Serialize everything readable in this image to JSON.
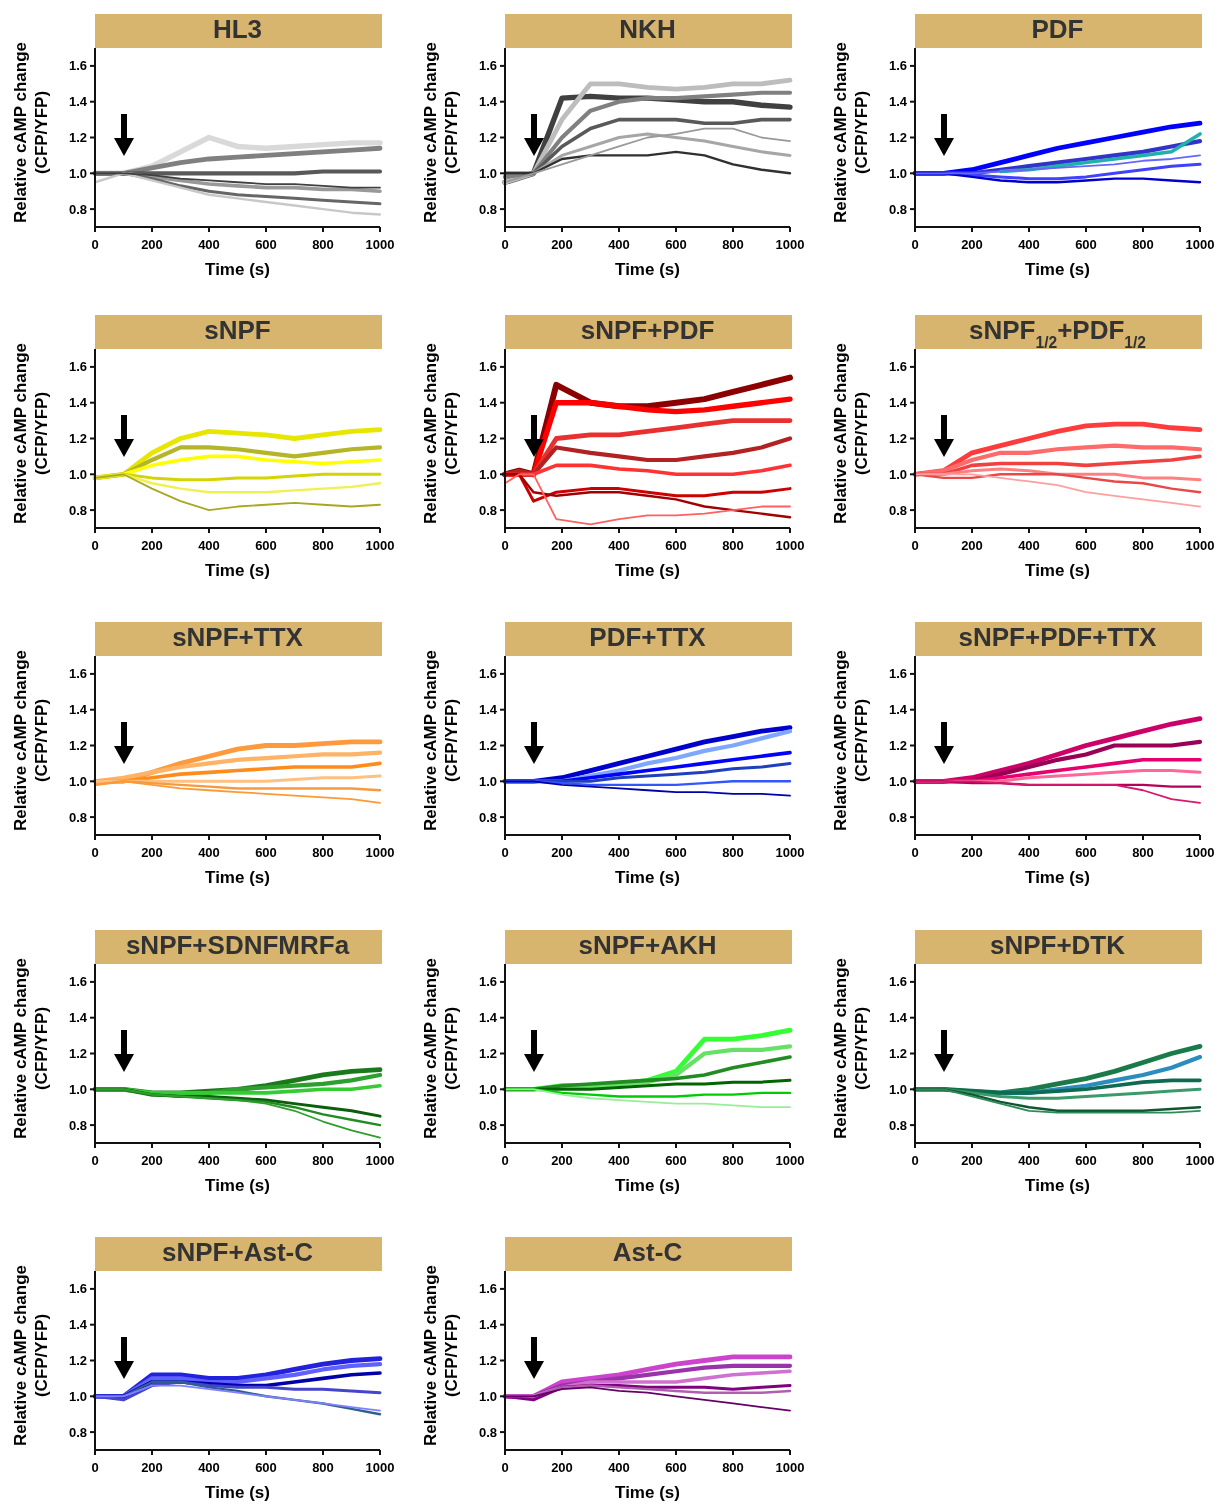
{
  "chart_data": [
    {
      "type": "line",
      "title": "HL3",
      "xlabel": "Time (s)",
      "ylabel": "Relative cAMP change\n(CFP/YFP)",
      "xlim": [
        0,
        1000
      ],
      "ylim": [
        0.7,
        1.7
      ],
      "xticks": [
        0,
        200,
        400,
        600,
        800,
        1000
      ],
      "yticks": [
        {
          "value": 0.8,
          "label": "0.8"
        },
        {
          "value": 1.0,
          "label": "1.0"
        },
        {
          "value": 1.2,
          "label": "1.2"
        },
        {
          "value": 1.4,
          "label": "1.4"
        },
        {
          "value": 1.6,
          "label": "1.6"
        }
      ],
      "x": [
        0,
        100,
        200,
        300,
        400,
        500,
        600,
        700,
        800,
        900,
        1000
      ],
      "series": [
        {
          "color": "#d9d9d9",
          "values": [
            1.0,
            1.0,
            1.04,
            1.12,
            1.2,
            1.15,
            1.14,
            1.15,
            1.16,
            1.17,
            1.17
          ]
        },
        {
          "color": "#808080",
          "values": [
            1.0,
            1.0,
            1.03,
            1.06,
            1.08,
            1.09,
            1.1,
            1.11,
            1.12,
            1.13,
            1.14
          ]
        },
        {
          "color": "#595959",
          "values": [
            1.0,
            1.0,
            1.0,
            1.0,
            1.0,
            1.0,
            1.0,
            1.0,
            1.01,
            1.01,
            1.01
          ]
        },
        {
          "color": "#999999",
          "values": [
            1.0,
            1.0,
            0.98,
            0.96,
            0.94,
            0.93,
            0.92,
            0.92,
            0.91,
            0.91,
            0.9
          ]
        },
        {
          "color": "#666666",
          "values": [
            1.0,
            1.0,
            0.97,
            0.93,
            0.9,
            0.88,
            0.87,
            0.86,
            0.85,
            0.84,
            0.83
          ]
        },
        {
          "color": "#c8c8c8",
          "values": [
            0.95,
            1.0,
            0.96,
            0.92,
            0.88,
            0.86,
            0.84,
            0.82,
            0.8,
            0.78,
            0.77
          ]
        },
        {
          "color": "#404040",
          "values": [
            1.0,
            1.0,
            0.99,
            0.97,
            0.96,
            0.95,
            0.94,
            0.94,
            0.93,
            0.92,
            0.92
          ]
        }
      ]
    },
    {
      "type": "line",
      "title": "NKH",
      "xlabel": "Time (s)",
      "ylabel": "Relative cAMP change\n(CFP/YFP)",
      "xlim": [
        0,
        1000
      ],
      "ylim": [
        0.7,
        1.7
      ],
      "xticks": [
        0,
        200,
        400,
        600,
        800,
        1000
      ],
      "yticks": [
        {
          "value": 0.8,
          "label": "0.8"
        },
        {
          "value": 1.0,
          "label": "1.0"
        },
        {
          "value": 1.2,
          "label": "1.2"
        },
        {
          "value": 1.4,
          "label": "1.4"
        },
        {
          "value": 1.6,
          "label": "1.6"
        }
      ],
      "x": [
        0,
        100,
        200,
        300,
        400,
        500,
        600,
        700,
        800,
        900,
        1000
      ],
      "series": [
        {
          "color": "#404040",
          "values": [
            0.95,
            1.0,
            1.42,
            1.43,
            1.42,
            1.42,
            1.41,
            1.4,
            1.4,
            1.38,
            1.37
          ]
        },
        {
          "color": "#bdbdbd",
          "values": [
            0.95,
            1.0,
            1.3,
            1.5,
            1.5,
            1.48,
            1.47,
            1.48,
            1.5,
            1.5,
            1.52
          ]
        },
        {
          "color": "#808080",
          "values": [
            0.98,
            1.0,
            1.2,
            1.35,
            1.4,
            1.42,
            1.42,
            1.43,
            1.44,
            1.45,
            1.45
          ]
        },
        {
          "color": "#595959",
          "values": [
            1.0,
            1.0,
            1.15,
            1.25,
            1.3,
            1.3,
            1.3,
            1.28,
            1.28,
            1.3,
            1.3
          ]
        },
        {
          "color": "#a6a6a6",
          "values": [
            1.0,
            1.0,
            1.1,
            1.15,
            1.2,
            1.22,
            1.2,
            1.18,
            1.15,
            1.12,
            1.1
          ]
        },
        {
          "color": "#303030",
          "values": [
            1.0,
            1.0,
            1.08,
            1.1,
            1.1,
            1.1,
            1.12,
            1.1,
            1.05,
            1.02,
            1.0
          ]
        },
        {
          "color": "#999999",
          "values": [
            0.95,
            1.0,
            1.05,
            1.1,
            1.15,
            1.2,
            1.22,
            1.25,
            1.25,
            1.2,
            1.18
          ]
        }
      ]
    },
    {
      "type": "line",
      "title": "PDF",
      "xlabel": "Time (s)",
      "ylabel": "Relative cAMP change\n(CFP/YFP)",
      "xlim": [
        0,
        1000
      ],
      "ylim": [
        0.7,
        1.7
      ],
      "xticks": [
        0,
        200,
        400,
        600,
        800,
        1000
      ],
      "yticks": [
        {
          "value": 0.8,
          "label": "0.8"
        },
        {
          "value": 1.0,
          "label": "1.0"
        },
        {
          "value": 1.2,
          "label": "1.2"
        },
        {
          "value": 1.4,
          "label": "1.4"
        },
        {
          "value": 1.6,
          "label": "1.6"
        }
      ],
      "x": [
        0,
        100,
        200,
        300,
        400,
        500,
        600,
        700,
        800,
        900,
        1000
      ],
      "series": [
        {
          "color": "#0000ff",
          "values": [
            1.0,
            1.0,
            1.02,
            1.06,
            1.1,
            1.14,
            1.17,
            1.2,
            1.23,
            1.26,
            1.28
          ]
        },
        {
          "color": "#3333cc",
          "values": [
            1.0,
            1.0,
            1.0,
            1.02,
            1.04,
            1.06,
            1.08,
            1.1,
            1.12,
            1.15,
            1.18
          ]
        },
        {
          "color": "#20b2aa",
          "values": [
            null,
            null,
            null,
            1.01,
            1.02,
            1.04,
            1.06,
            1.08,
            1.1,
            1.12,
            1.22
          ]
        },
        {
          "color": "#4040ff",
          "values": [
            1.0,
            1.0,
            0.99,
            0.98,
            0.97,
            0.97,
            0.98,
            1.0,
            1.02,
            1.04,
            1.05
          ]
        },
        {
          "color": "#0000cc",
          "values": [
            1.0,
            1.0,
            0.98,
            0.96,
            0.95,
            0.95,
            0.96,
            0.97,
            0.97,
            0.96,
            0.95
          ]
        },
        {
          "color": "#6666ff",
          "values": [
            1.0,
            1.0,
            1.0,
            1.01,
            1.02,
            1.03,
            1.04,
            1.05,
            1.07,
            1.08,
            1.1
          ]
        }
      ]
    },
    {
      "type": "line",
      "title": "sNPF",
      "xlabel": "Time (s)",
      "ylabel": "Relative cAMP change\n(CFP/YFP)",
      "xlim": [
        0,
        1000
      ],
      "ylim": [
        0.7,
        1.7
      ],
      "xticks": [
        0,
        200,
        400,
        600,
        800,
        1000
      ],
      "yticks": [
        {
          "value": 0.8,
          "label": "0.8"
        },
        {
          "value": 1.0,
          "label": "1.0"
        },
        {
          "value": 1.2,
          "label": "1.2"
        },
        {
          "value": 1.4,
          "label": "1.4"
        },
        {
          "value": 1.6,
          "label": "1.6"
        }
      ],
      "x": [
        0,
        100,
        200,
        300,
        400,
        500,
        600,
        700,
        800,
        900,
        1000
      ],
      "series": [
        {
          "color": "#e6e600",
          "values": [
            0.98,
            1.0,
            1.12,
            1.2,
            1.24,
            1.23,
            1.22,
            1.2,
            1.22,
            1.24,
            1.25
          ]
        },
        {
          "color": "#b5b52a",
          "values": [
            0.98,
            1.0,
            1.08,
            1.15,
            1.15,
            1.14,
            1.12,
            1.1,
            1.12,
            1.14,
            1.15
          ]
        },
        {
          "color": "#ffff00",
          "values": [
            0.98,
            1.0,
            1.05,
            1.08,
            1.1,
            1.1,
            1.08,
            1.07,
            1.06,
            1.07,
            1.08
          ]
        },
        {
          "color": "#d4d400",
          "values": [
            0.98,
            1.0,
            0.98,
            0.97,
            0.97,
            0.98,
            0.98,
            0.99,
            1.0,
            1.0,
            1.0
          ]
        },
        {
          "color": "#f0f050",
          "values": [
            0.98,
            1.0,
            0.95,
            0.92,
            0.9,
            0.9,
            0.9,
            0.91,
            0.92,
            0.93,
            0.95
          ]
        },
        {
          "color": "#a8a820",
          "values": [
            0.98,
            1.0,
            0.92,
            0.85,
            0.8,
            0.82,
            0.83,
            0.84,
            0.83,
            0.82,
            0.83
          ]
        }
      ]
    },
    {
      "type": "line",
      "title": "sNPF+PDF",
      "xlabel": "Time (s)",
      "ylabel": "Relative cAMP change\n(CFP/YFP)",
      "xlim": [
        0,
        1000
      ],
      "ylim": [
        0.7,
        1.7
      ],
      "xticks": [
        0,
        200,
        400,
        600,
        800,
        1000
      ],
      "yticks": [
        {
          "value": 0.8,
          "label": "0.8"
        },
        {
          "value": 1.0,
          "label": "1.0"
        },
        {
          "value": 1.2,
          "label": "1.2"
        },
        {
          "value": 1.4,
          "label": "1.4"
        },
        {
          "value": 1.6,
          "label": "1.6"
        }
      ],
      "x": [
        0,
        50,
        100,
        180,
        300,
        400,
        500,
        600,
        700,
        800,
        900,
        1000
      ],
      "series": [
        {
          "color": "#8b0000",
          "values": [
            1.0,
            1.02,
            1.0,
            1.5,
            1.4,
            1.38,
            1.38,
            1.4,
            1.42,
            1.46,
            1.5,
            1.54
          ]
        },
        {
          "color": "#ff0000",
          "values": [
            1.0,
            1.0,
            1.0,
            1.4,
            1.4,
            1.38,
            1.36,
            1.35,
            1.36,
            1.38,
            1.4,
            1.42
          ]
        },
        {
          "color": "#e83030",
          "values": [
            1.0,
            1.0,
            1.0,
            1.2,
            1.22,
            1.22,
            1.24,
            1.26,
            1.28,
            1.3,
            1.3,
            1.3
          ]
        },
        {
          "color": "#b22222",
          "values": [
            1.0,
            1.02,
            1.0,
            1.15,
            1.12,
            1.1,
            1.08,
            1.08,
            1.1,
            1.12,
            1.15,
            1.2
          ]
        },
        {
          "color": "#ff3333",
          "values": [
            1.0,
            1.0,
            1.0,
            1.05,
            1.05,
            1.03,
            1.02,
            1.0,
            1.0,
            1.0,
            1.02,
            1.05
          ]
        },
        {
          "color": "#cc0000",
          "values": [
            1.0,
            1.0,
            0.85,
            0.9,
            0.92,
            0.92,
            0.9,
            0.88,
            0.88,
            0.9,
            0.9,
            0.92
          ]
        },
        {
          "color": "#a00000",
          "values": [
            1.0,
            1.0,
            0.9,
            0.88,
            0.9,
            0.9,
            0.88,
            0.86,
            0.82,
            0.8,
            0.78,
            0.76
          ]
        },
        {
          "color": "#ff6060",
          "values": [
            0.95,
            1.0,
            1.0,
            0.75,
            0.72,
            0.75,
            0.77,
            0.77,
            0.78,
            0.8,
            0.82,
            0.82
          ]
        }
      ]
    },
    {
      "type": "line",
      "title": "sNPF$_{1/2}$+PDF$_{1/2}$",
      "xlabel": "Time (s)",
      "ylabel": "Relative cAMP change\n(CFP/YFP)",
      "xlim": [
        0,
        1000
      ],
      "ylim": [
        0.7,
        1.7
      ],
      "xticks": [
        0,
        200,
        400,
        600,
        800,
        1000
      ],
      "yticks": [
        {
          "value": 0.8,
          "label": "0.8"
        },
        {
          "value": 1.0,
          "label": "1.0"
        },
        {
          "value": 1.2,
          "label": "1.2"
        },
        {
          "value": 1.4,
          "label": "1.4"
        },
        {
          "value": 1.6,
          "label": "1.6"
        }
      ],
      "x": [
        0,
        100,
        200,
        300,
        400,
        500,
        600,
        700,
        800,
        900,
        1000
      ],
      "series": [
        {
          "color": "#ff3b3b",
          "values": [
            1.0,
            1.02,
            1.12,
            1.16,
            1.2,
            1.24,
            1.27,
            1.28,
            1.28,
            1.26,
            1.25
          ]
        },
        {
          "color": "#ff6b6b",
          "values": [
            1.0,
            1.02,
            1.08,
            1.12,
            1.12,
            1.14,
            1.15,
            1.16,
            1.15,
            1.15,
            1.14
          ]
        },
        {
          "color": "#f04040",
          "values": [
            1.0,
            1.0,
            1.05,
            1.06,
            1.06,
            1.06,
            1.05,
            1.06,
            1.07,
            1.08,
            1.1
          ]
        },
        {
          "color": "#ff8080",
          "values": [
            1.0,
            1.0,
            1.02,
            1.03,
            1.02,
            1.0,
            1.0,
            1.0,
            0.98,
            0.98,
            0.97
          ]
        },
        {
          "color": "#e84848",
          "values": [
            1.0,
            0.98,
            0.98,
            1.0,
            1.0,
            1.0,
            0.98,
            0.96,
            0.95,
            0.92,
            0.9
          ]
        },
        {
          "color": "#ffa0a0",
          "values": [
            1.0,
            1.0,
            1.0,
            0.98,
            0.96,
            0.94,
            0.9,
            0.88,
            0.86,
            0.84,
            0.82
          ]
        }
      ]
    },
    {
      "type": "line",
      "title": "sNPF+TTX",
      "xlabel": "Time (s)",
      "ylabel": "Relative cAMP change\n(CFP/YFP)",
      "xlim": [
        0,
        1000
      ],
      "ylim": [
        0.7,
        1.7
      ],
      "xticks": [
        0,
        200,
        400,
        600,
        800,
        1000
      ],
      "yticks": [
        {
          "value": 0.8,
          "label": "0.8"
        },
        {
          "value": 1.0,
          "label": "1.0"
        },
        {
          "value": 1.2,
          "label": "1.2"
        },
        {
          "value": 1.4,
          "label": "1.4"
        },
        {
          "value": 1.6,
          "label": "1.6"
        }
      ],
      "x": [
        0,
        100,
        200,
        300,
        400,
        500,
        600,
        700,
        800,
        900,
        1000
      ],
      "series": [
        {
          "color": "#ff9a3c",
          "values": [
            1.0,
            1.0,
            1.05,
            1.1,
            1.14,
            1.18,
            1.2,
            1.2,
            1.21,
            1.22,
            1.22
          ]
        },
        {
          "color": "#ffb366",
          "values": [
            1.0,
            1.02,
            1.05,
            1.08,
            1.1,
            1.12,
            1.13,
            1.14,
            1.15,
            1.15,
            1.16
          ]
        },
        {
          "color": "#ff8c1a",
          "values": [
            1.0,
            1.0,
            1.02,
            1.04,
            1.05,
            1.06,
            1.07,
            1.08,
            1.08,
            1.08,
            1.1
          ]
        },
        {
          "color": "#ffc080",
          "values": [
            1.0,
            1.0,
            1.0,
            1.0,
            1.0,
            1.0,
            1.0,
            1.01,
            1.02,
            1.02,
            1.03
          ]
        },
        {
          "color": "#f59a40",
          "values": [
            0.98,
            1.0,
            0.99,
            0.98,
            0.97,
            0.96,
            0.96,
            0.96,
            0.96,
            0.96,
            0.95
          ]
        },
        {
          "color": "#ff9933",
          "values": [
            0.98,
            1.0,
            0.98,
            0.96,
            0.95,
            0.94,
            0.93,
            0.92,
            0.91,
            0.9,
            0.88
          ]
        }
      ]
    },
    {
      "type": "line",
      "title": "PDF+TTX",
      "xlabel": "Time (s)",
      "ylabel": "Relative cAMP change\n(CFP/YFP)",
      "xlim": [
        0,
        1000
      ],
      "ylim": [
        0.7,
        1.7
      ],
      "xticks": [
        0,
        200,
        400,
        600,
        800,
        1000
      ],
      "yticks": [
        {
          "value": 0.8,
          "label": "0.8"
        },
        {
          "value": 1.0,
          "label": "1.0"
        },
        {
          "value": 1.2,
          "label": "1.2"
        },
        {
          "value": 1.4,
          "label": "1.4"
        },
        {
          "value": 1.6,
          "label": "1.6"
        }
      ],
      "x": [
        0,
        100,
        200,
        300,
        400,
        500,
        600,
        700,
        800,
        900,
        1000
      ],
      "series": [
        {
          "color": "#0000cc",
          "values": [
            1.0,
            1.0,
            1.02,
            1.06,
            1.1,
            1.14,
            1.18,
            1.22,
            1.25,
            1.28,
            1.3
          ]
        },
        {
          "color": "#7fa7ff",
          "values": [
            1.0,
            1.0,
            1.0,
            1.03,
            1.06,
            1.1,
            1.13,
            1.17,
            1.2,
            1.24,
            1.28
          ]
        },
        {
          "color": "#0000ff",
          "values": [
            1.0,
            1.0,
            1.0,
            1.02,
            1.04,
            1.06,
            1.08,
            1.1,
            1.12,
            1.14,
            1.16
          ]
        },
        {
          "color": "#1f3fbf",
          "values": [
            1.0,
            1.0,
            1.0,
            1.0,
            1.02,
            1.03,
            1.04,
            1.05,
            1.07,
            1.08,
            1.1
          ]
        },
        {
          "color": "#3355ff",
          "values": [
            1.0,
            1.0,
            0.99,
            0.98,
            0.98,
            0.98,
            0.98,
            0.99,
            1.0,
            1.0,
            1.0
          ]
        },
        {
          "color": "#0000aa",
          "values": [
            1.0,
            1.0,
            0.98,
            0.97,
            0.96,
            0.95,
            0.94,
            0.94,
            0.93,
            0.93,
            0.92
          ]
        }
      ]
    },
    {
      "type": "line",
      "title": "sNPF+PDF+TTX",
      "xlabel": "Time (s)",
      "ylabel": "Relative cAMP change\n(CFP/YFP)",
      "xlim": [
        0,
        1000
      ],
      "ylim": [
        0.7,
        1.7
      ],
      "xticks": [
        0,
        200,
        400,
        600,
        800,
        1000
      ],
      "yticks": [
        {
          "value": 0.8,
          "label": "0.8"
        },
        {
          "value": 1.0,
          "label": "1.0"
        },
        {
          "value": 1.2,
          "label": "1.2"
        },
        {
          "value": 1.4,
          "label": "1.4"
        },
        {
          "value": 1.6,
          "label": "1.6"
        }
      ],
      "x": [
        0,
        100,
        200,
        300,
        400,
        500,
        600,
        700,
        800,
        900,
        1000
      ],
      "series": [
        {
          "color": "#cc0066",
          "values": [
            1.0,
            1.0,
            1.02,
            1.06,
            1.1,
            1.15,
            1.2,
            1.24,
            1.28,
            1.32,
            1.35
          ]
        },
        {
          "color": "#990055",
          "values": [
            1.0,
            1.0,
            1.0,
            1.04,
            1.08,
            1.12,
            1.15,
            1.2,
            1.2,
            1.2,
            1.22
          ]
        },
        {
          "color": "#e6006e",
          "values": [
            1.0,
            1.0,
            1.0,
            1.02,
            1.04,
            1.06,
            1.08,
            1.1,
            1.12,
            1.12,
            1.12
          ]
        },
        {
          "color": "#ff6699",
          "values": [
            1.0,
            1.0,
            1.0,
            1.0,
            1.02,
            1.03,
            1.04,
            1.05,
            1.06,
            1.06,
            1.05
          ]
        },
        {
          "color": "#b3005a",
          "values": [
            1.0,
            1.0,
            0.99,
            0.99,
            0.98,
            0.98,
            0.98,
            0.98,
            0.98,
            0.97,
            0.97
          ]
        },
        {
          "color": "#d6186e",
          "values": [
            1.0,
            1.0,
            1.0,
            0.99,
            0.98,
            0.98,
            0.98,
            0.98,
            0.95,
            0.9,
            0.88
          ]
        }
      ]
    },
    {
      "type": "line",
      "title": "sNPF+SDNFMRFa",
      "xlabel": "Time (s)",
      "ylabel": "Relative cAMP change\n(CFP/YFP)",
      "xlim": [
        0,
        1000
      ],
      "ylim": [
        0.7,
        1.7
      ],
      "xticks": [
        0,
        200,
        400,
        600,
        800,
        1000
      ],
      "yticks": [
        {
          "value": 0.8,
          "label": "0.8"
        },
        {
          "value": 1.0,
          "label": "1.0"
        },
        {
          "value": 1.2,
          "label": "1.2"
        },
        {
          "value": 1.4,
          "label": "1.4"
        },
        {
          "value": 1.6,
          "label": "1.6"
        }
      ],
      "x": [
        0,
        100,
        200,
        300,
        400,
        500,
        600,
        700,
        800,
        900,
        1000
      ],
      "series": [
        {
          "color": "#1a7a1a",
          "values": [
            1.0,
            1.0,
            0.98,
            0.98,
            0.99,
            1.0,
            1.02,
            1.05,
            1.08,
            1.1,
            1.11
          ]
        },
        {
          "color": "#2ca02c",
          "values": [
            1.0,
            1.0,
            0.97,
            0.97,
            0.98,
            1.0,
            1.01,
            1.02,
            1.03,
            1.05,
            1.08
          ]
        },
        {
          "color": "#33cc33",
          "values": [
            1.0,
            1.0,
            0.98,
            0.98,
            0.98,
            0.98,
            0.98,
            0.99,
            1.0,
            1.0,
            1.02
          ]
        },
        {
          "color": "#0b5e0b",
          "values": [
            1.0,
            1.0,
            0.97,
            0.96,
            0.96,
            0.95,
            0.94,
            0.92,
            0.9,
            0.88,
            0.85
          ]
        },
        {
          "color": "#228b22",
          "values": [
            1.0,
            1.0,
            0.97,
            0.96,
            0.95,
            0.94,
            0.93,
            0.9,
            0.86,
            0.83,
            0.8
          ]
        },
        {
          "color": "#2e9e2e",
          "values": [
            1.0,
            1.0,
            0.97,
            0.96,
            0.95,
            0.94,
            0.92,
            0.88,
            0.82,
            0.77,
            0.73
          ]
        }
      ]
    },
    {
      "type": "line",
      "title": "sNPF+AKH",
      "xlabel": "Time (s)",
      "ylabel": "Relative cAMP change\n(CFP/YFP)",
      "xlim": [
        0,
        1000
      ],
      "ylim": [
        0.7,
        1.7
      ],
      "xticks": [
        0,
        200,
        400,
        600,
        800,
        1000
      ],
      "yticks": [
        {
          "value": 0.8,
          "label": "0.8"
        },
        {
          "value": 1.0,
          "label": "1.0"
        },
        {
          "value": 1.2,
          "label": "1.2"
        },
        {
          "value": 1.4,
          "label": "1.4"
        },
        {
          "value": 1.6,
          "label": "1.6"
        }
      ],
      "x": [
        0,
        100,
        200,
        300,
        400,
        500,
        600,
        700,
        800,
        900,
        1000
      ],
      "series": [
        {
          "color": "#33ff33",
          "values": [
            1.0,
            1.0,
            1.02,
            1.02,
            1.03,
            1.05,
            1.1,
            1.28,
            1.28,
            1.3,
            1.33
          ]
        },
        {
          "color": "#66e066",
          "values": [
            1.0,
            1.0,
            1.02,
            1.02,
            1.03,
            1.04,
            1.08,
            1.2,
            1.22,
            1.22,
            1.24
          ]
        },
        {
          "color": "#228b22",
          "values": [
            1.0,
            1.0,
            1.02,
            1.03,
            1.04,
            1.05,
            1.06,
            1.08,
            1.12,
            1.15,
            1.18
          ]
        },
        {
          "color": "#006400",
          "values": [
            1.0,
            1.0,
            1.0,
            1.0,
            1.01,
            1.02,
            1.03,
            1.03,
            1.04,
            1.04,
            1.05
          ]
        },
        {
          "color": "#00cc00",
          "values": [
            1.0,
            1.0,
            0.98,
            0.97,
            0.96,
            0.96,
            0.96,
            0.97,
            0.97,
            0.98,
            0.98
          ]
        },
        {
          "color": "#99ee99",
          "values": [
            1.0,
            1.0,
            0.97,
            0.95,
            0.94,
            0.93,
            0.92,
            0.92,
            0.91,
            0.9,
            0.9
          ]
        }
      ]
    },
    {
      "type": "line",
      "title": "sNPF+DTK",
      "xlabel": "Time (s)",
      "ylabel": "Relative cAMP change\n(CFP/YFP)",
      "xlim": [
        0,
        1000
      ],
      "ylim": [
        0.7,
        1.7
      ],
      "xticks": [
        0,
        200,
        400,
        600,
        800,
        1000
      ],
      "yticks": [
        {
          "value": 0.8,
          "label": "0.8"
        },
        {
          "value": 1.0,
          "label": "1.0"
        },
        {
          "value": 1.2,
          "label": "1.2"
        },
        {
          "value": 1.4,
          "label": "1.4"
        },
        {
          "value": 1.6,
          "label": "1.6"
        }
      ],
      "x": [
        0,
        100,
        200,
        300,
        400,
        500,
        600,
        700,
        800,
        900,
        1000
      ],
      "series": [
        {
          "color": "#1a7a4a",
          "values": [
            1.0,
            1.0,
            0.99,
            0.98,
            1.0,
            1.03,
            1.06,
            1.1,
            1.15,
            1.2,
            1.24
          ]
        },
        {
          "color": "#2b8cbe",
          "values": [
            null,
            null,
            null,
            0.98,
            0.98,
            1.0,
            1.02,
            1.05,
            1.08,
            1.12,
            1.18
          ]
        },
        {
          "color": "#0f6b50",
          "values": [
            1.0,
            1.0,
            0.99,
            0.98,
            0.98,
            0.99,
            1.0,
            1.02,
            1.04,
            1.05,
            1.05
          ]
        },
        {
          "color": "#3a9a6a",
          "values": [
            1.0,
            1.0,
            0.98,
            0.96,
            0.95,
            0.95,
            0.96,
            0.97,
            0.98,
            0.99,
            1.0
          ]
        },
        {
          "color": "#115533",
          "values": [
            1.0,
            1.0,
            0.97,
            0.93,
            0.9,
            0.88,
            0.88,
            0.88,
            0.88,
            0.89,
            0.9
          ]
        },
        {
          "color": "#2e8b57",
          "values": [
            1.0,
            1.0,
            0.96,
            0.92,
            0.88,
            0.87,
            0.87,
            0.87,
            0.87,
            0.87,
            0.88
          ]
        }
      ]
    },
    {
      "type": "line",
      "title": "sNPF+Ast-C",
      "xlabel": "Time (s)",
      "ylabel": "Relative cAMP change\n(CFP/YFP)",
      "xlim": [
        0,
        1000
      ],
      "ylim": [
        0.7,
        1.7
      ],
      "xticks": [
        0,
        200,
        400,
        600,
        800,
        1000
      ],
      "yticks": [
        {
          "value": 0.8,
          "label": "0.8"
        },
        {
          "value": 1.0,
          "label": "1.0"
        },
        {
          "value": 1.2,
          "label": "1.2"
        },
        {
          "value": 1.4,
          "label": "1.4"
        },
        {
          "value": 1.6,
          "label": "1.6"
        }
      ],
      "x": [
        0,
        100,
        200,
        300,
        400,
        500,
        600,
        700,
        800,
        900,
        1000
      ],
      "series": [
        {
          "color": "#2222dd",
          "values": [
            1.0,
            1.0,
            1.12,
            1.12,
            1.1,
            1.1,
            1.12,
            1.15,
            1.18,
            1.2,
            1.21
          ]
        },
        {
          "color": "#6060ff",
          "values": [
            1.0,
            1.0,
            1.1,
            1.1,
            1.08,
            1.08,
            1.1,
            1.12,
            1.15,
            1.17,
            1.18
          ]
        },
        {
          "color": "#0000aa",
          "values": [
            1.0,
            1.0,
            1.08,
            1.08,
            1.07,
            1.06,
            1.06,
            1.08,
            1.1,
            1.12,
            1.13
          ]
        },
        {
          "color": "#4444cc",
          "values": [
            1.0,
            0.98,
            1.06,
            1.08,
            1.06,
            1.05,
            1.05,
            1.04,
            1.04,
            1.03,
            1.02
          ]
        },
        {
          "color": "#2f5f8f",
          "values": [
            1.0,
            1.0,
            1.08,
            1.08,
            1.05,
            1.03,
            1.0,
            0.98,
            0.96,
            0.93,
            0.9
          ]
        },
        {
          "color": "#8080ff",
          "values": [
            1.0,
            1.0,
            1.06,
            1.06,
            1.04,
            1.02,
            1.0,
            0.98,
            0.96,
            0.94,
            0.92
          ]
        }
      ]
    },
    {
      "type": "line",
      "title": "Ast-C",
      "xlabel": "Time (s)",
      "ylabel": "Relative cAMP change\n(CFP/YFP)",
      "xlim": [
        0,
        1000
      ],
      "ylim": [
        0.7,
        1.7
      ],
      "xticks": [
        0,
        200,
        400,
        600,
        800,
        1000
      ],
      "yticks": [
        {
          "value": 0.8,
          "label": "0.8"
        },
        {
          "value": 1.0,
          "label": "1.0"
        },
        {
          "value": 1.2,
          "label": "1.2"
        },
        {
          "value": 1.4,
          "label": "1.4"
        },
        {
          "value": 1.6,
          "label": "1.6"
        }
      ],
      "x": [
        0,
        100,
        200,
        300,
        400,
        500,
        600,
        700,
        800,
        900,
        1000
      ],
      "series": [
        {
          "color": "#cc44cc",
          "values": [
            1.0,
            1.0,
            1.08,
            1.1,
            1.12,
            1.15,
            1.18,
            1.2,
            1.22,
            1.22,
            1.22
          ]
        },
        {
          "color": "#9933aa",
          "values": [
            1.0,
            1.0,
            1.06,
            1.08,
            1.1,
            1.12,
            1.14,
            1.16,
            1.17,
            1.17,
            1.17
          ]
        },
        {
          "color": "#d070d0",
          "values": [
            1.0,
            1.0,
            1.05,
            1.08,
            1.08,
            1.08,
            1.08,
            1.1,
            1.12,
            1.13,
            1.14
          ]
        },
        {
          "color": "#800080",
          "values": [
            1.0,
            0.98,
            1.05,
            1.06,
            1.06,
            1.05,
            1.05,
            1.05,
            1.04,
            1.05,
            1.06
          ]
        },
        {
          "color": "#b05fb0",
          "values": [
            1.0,
            1.0,
            1.05,
            1.06,
            1.05,
            1.04,
            1.03,
            1.02,
            1.02,
            1.02,
            1.03
          ]
        },
        {
          "color": "#660066",
          "values": [
            1.0,
            1.0,
            1.04,
            1.05,
            1.03,
            1.02,
            1.0,
            0.98,
            0.96,
            0.94,
            0.92
          ]
        }
      ]
    }
  ]
}
